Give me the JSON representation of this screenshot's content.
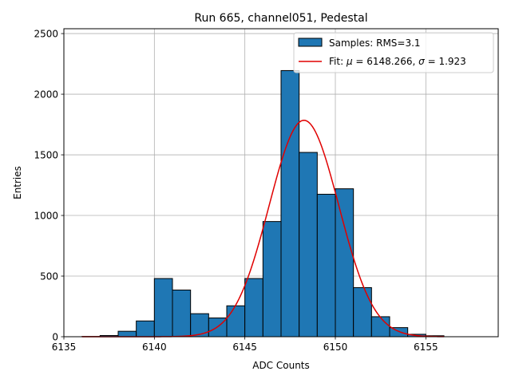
{
  "chart_data": {
    "type": "bar",
    "title": "Run 665, channel051, Pedestal",
    "xlabel": "ADC Counts",
    "ylabel": "Entries",
    "xlim": [
      6135,
      6159
    ],
    "ylim": [
      0,
      2540
    ],
    "grid": true,
    "legend_position": "top-right",
    "x_ticks": [
      6135,
      6140,
      6145,
      6150,
      6155
    ],
    "y_ticks": [
      0,
      500,
      1000,
      1500,
      2000,
      2500
    ],
    "histogram": {
      "name": "Samples: RMS=3.1",
      "bin_edges": [
        6136,
        6137,
        6138,
        6139,
        6140,
        6141,
        6142,
        6143,
        6144,
        6145,
        6146,
        6147,
        6148,
        6149,
        6150,
        6151,
        6152,
        6153,
        6154,
        6155,
        6156
      ],
      "counts": [
        2,
        10,
        45,
        130,
        480,
        385,
        190,
        155,
        255,
        480,
        950,
        2195,
        1520,
        1175,
        1220,
        405,
        165,
        75,
        20,
        8
      ],
      "color": "#1f77b4",
      "edge_color": "#000000"
    },
    "fit": {
      "name": "Fit: μ = 6148.266, σ = 1.923",
      "legend_prefix": "Fit: ",
      "legend_body": " = 6148.266, ",
      "legend_suffix": " = 1.923",
      "mu_symbol": "μ",
      "sigma_symbol": "σ",
      "mu": 6148.266,
      "sigma": 1.923,
      "amplitude": 1785,
      "x_range": [
        6136,
        6156
      ],
      "color": "#e00000"
    }
  }
}
